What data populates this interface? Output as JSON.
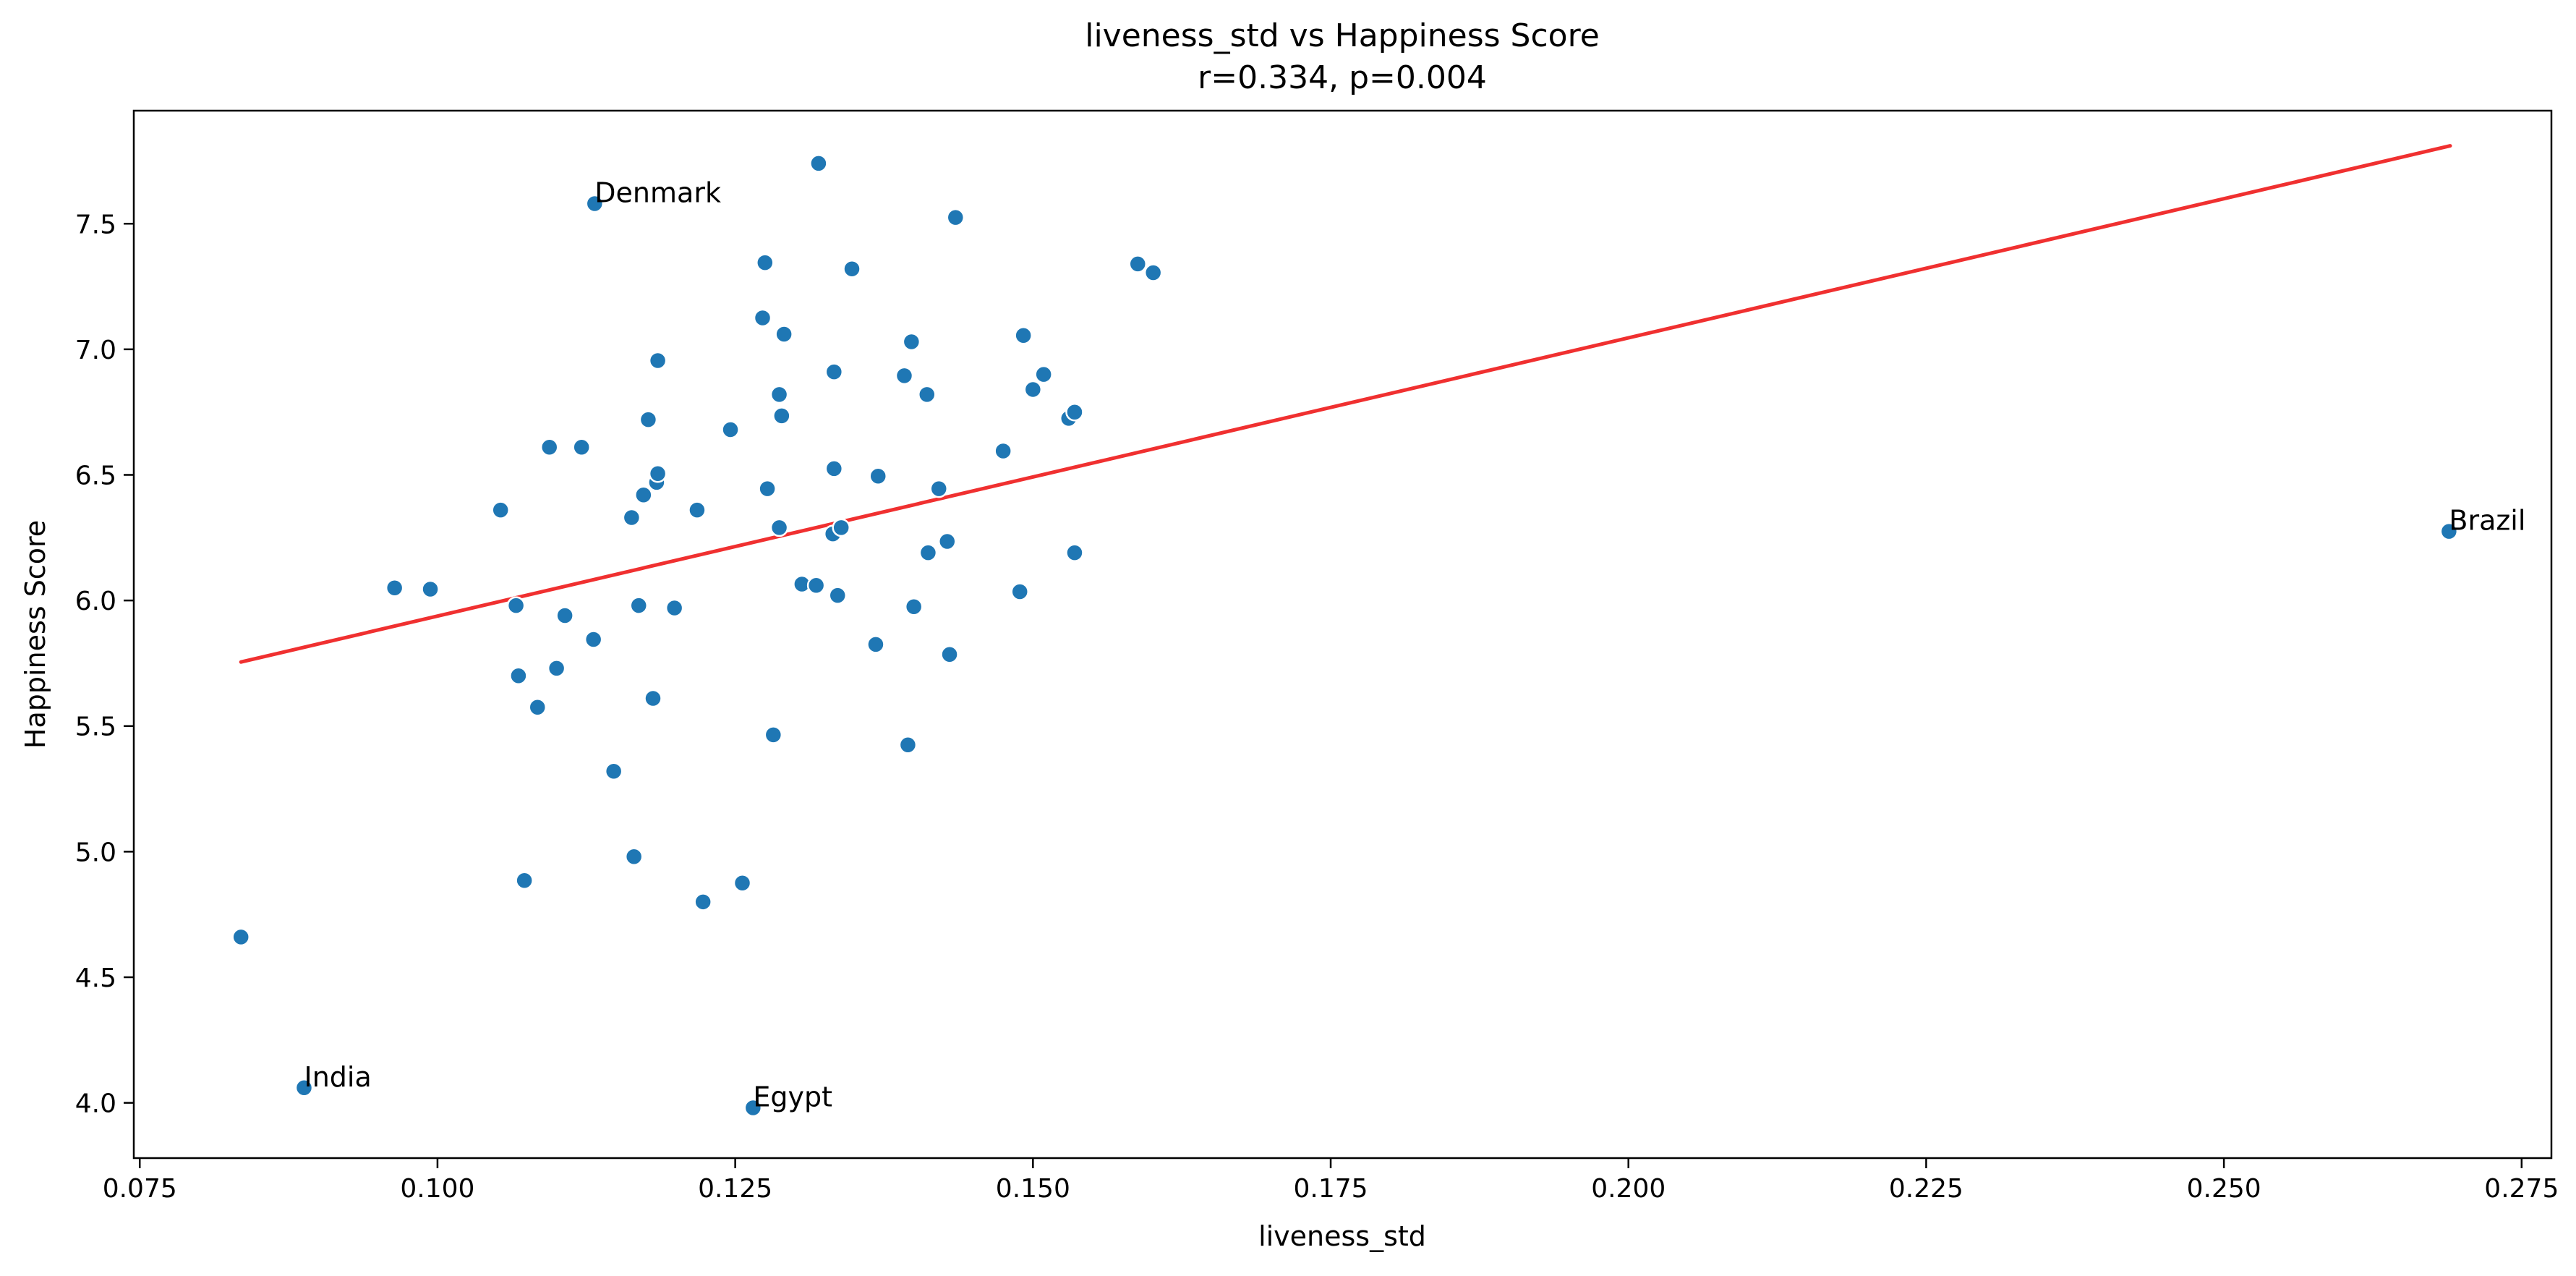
{
  "chart_data": {
    "type": "scatter",
    "title": "liveness_std vs Happiness Score",
    "subtitle": "r=0.334, p=0.004",
    "xlabel": "liveness_std",
    "ylabel": "Happiness Score",
    "xlim": [
      0.0745,
      0.2775
    ],
    "ylim": [
      3.78,
      7.95
    ],
    "xticks": [
      0.075,
      0.1,
      0.125,
      0.15,
      0.175,
      0.2,
      0.225,
      0.25,
      0.275
    ],
    "xtick_labels": [
      "0.075",
      "0.100",
      "0.125",
      "0.150",
      "0.175",
      "0.200",
      "0.225",
      "0.250",
      "0.275"
    ],
    "yticks": [
      4.0,
      4.5,
      5.0,
      5.5,
      6.0,
      6.5,
      7.0,
      7.5
    ],
    "ytick_labels": [
      "4.0",
      "4.5",
      "5.0",
      "5.5",
      "6.0",
      "6.5",
      "7.0",
      "7.5"
    ],
    "grid": false,
    "point_color": "#1f77b4",
    "point_edge_color": "#ffffff",
    "trend_color": "#f03030",
    "trend_line": {
      "x": [
        0.0835,
        0.269
      ],
      "y": [
        5.755,
        7.81
      ]
    },
    "points": [
      {
        "x": 0.0835,
        "y": 4.66
      },
      {
        "x": 0.0888,
        "y": 4.06,
        "label": "India"
      },
      {
        "x": 0.0964,
        "y": 6.05
      },
      {
        "x": 0.0994,
        "y": 6.045
      },
      {
        "x": 0.1053,
        "y": 6.36
      },
      {
        "x": 0.1066,
        "y": 5.98
      },
      {
        "x": 0.1068,
        "y": 5.7
      },
      {
        "x": 0.1073,
        "y": 4.885
      },
      {
        "x": 0.1084,
        "y": 5.575
      },
      {
        "x": 0.1094,
        "y": 6.61
      },
      {
        "x": 0.11,
        "y": 5.73
      },
      {
        "x": 0.1107,
        "y": 5.94
      },
      {
        "x": 0.1121,
        "y": 6.61
      },
      {
        "x": 0.1131,
        "y": 5.845
      },
      {
        "x": 0.1132,
        "y": 7.58,
        "label": "Denmark"
      },
      {
        "x": 0.1148,
        "y": 5.32
      },
      {
        "x": 0.1163,
        "y": 6.33
      },
      {
        "x": 0.1165,
        "y": 4.98
      },
      {
        "x": 0.1169,
        "y": 5.98
      },
      {
        "x": 0.1173,
        "y": 6.42
      },
      {
        "x": 0.1177,
        "y": 6.72
      },
      {
        "x": 0.1181,
        "y": 5.61
      },
      {
        "x": 0.1184,
        "y": 6.47
      },
      {
        "x": 0.1185,
        "y": 6.505
      },
      {
        "x": 0.1185,
        "y": 6.955
      },
      {
        "x": 0.1199,
        "y": 5.97
      },
      {
        "x": 0.1218,
        "y": 6.36
      },
      {
        "x": 0.1223,
        "y": 4.8
      },
      {
        "x": 0.1246,
        "y": 6.68
      },
      {
        "x": 0.1256,
        "y": 4.875
      },
      {
        "x": 0.1265,
        "y": 3.98,
        "label": "Egypt"
      },
      {
        "x": 0.1273,
        "y": 7.125
      },
      {
        "x": 0.1275,
        "y": 7.345
      },
      {
        "x": 0.1277,
        "y": 6.445
      },
      {
        "x": 0.1282,
        "y": 5.465
      },
      {
        "x": 0.1287,
        "y": 6.29
      },
      {
        "x": 0.1287,
        "y": 6.82
      },
      {
        "x": 0.1289,
        "y": 6.735
      },
      {
        "x": 0.1291,
        "y": 7.06
      },
      {
        "x": 0.1306,
        "y": 6.065
      },
      {
        "x": 0.1318,
        "y": 6.06
      },
      {
        "x": 0.132,
        "y": 7.74
      },
      {
        "x": 0.1332,
        "y": 6.265
      },
      {
        "x": 0.1333,
        "y": 6.91
      },
      {
        "x": 0.1333,
        "y": 6.525
      },
      {
        "x": 0.1336,
        "y": 6.02
      },
      {
        "x": 0.1339,
        "y": 6.29
      },
      {
        "x": 0.1348,
        "y": 7.32
      },
      {
        "x": 0.1368,
        "y": 5.825
      },
      {
        "x": 0.137,
        "y": 6.495
      },
      {
        "x": 0.1392,
        "y": 6.895
      },
      {
        "x": 0.1395,
        "y": 5.425
      },
      {
        "x": 0.1398,
        "y": 7.03
      },
      {
        "x": 0.14,
        "y": 5.975
      },
      {
        "x": 0.1411,
        "y": 6.82
      },
      {
        "x": 0.1412,
        "y": 6.19
      },
      {
        "x": 0.1421,
        "y": 6.445
      },
      {
        "x": 0.1428,
        "y": 6.235
      },
      {
        "x": 0.143,
        "y": 5.785
      },
      {
        "x": 0.1435,
        "y": 7.525
      },
      {
        "x": 0.1475,
        "y": 6.595
      },
      {
        "x": 0.1489,
        "y": 6.035
      },
      {
        "x": 0.1492,
        "y": 7.055
      },
      {
        "x": 0.15,
        "y": 6.84
      },
      {
        "x": 0.1509,
        "y": 6.9
      },
      {
        "x": 0.153,
        "y": 6.725
      },
      {
        "x": 0.1535,
        "y": 6.75
      },
      {
        "x": 0.1535,
        "y": 6.19
      },
      {
        "x": 0.1588,
        "y": 7.34
      },
      {
        "x": 0.1601,
        "y": 7.305
      },
      {
        "x": 0.2689,
        "y": 6.275,
        "label": "Brazil"
      }
    ]
  }
}
